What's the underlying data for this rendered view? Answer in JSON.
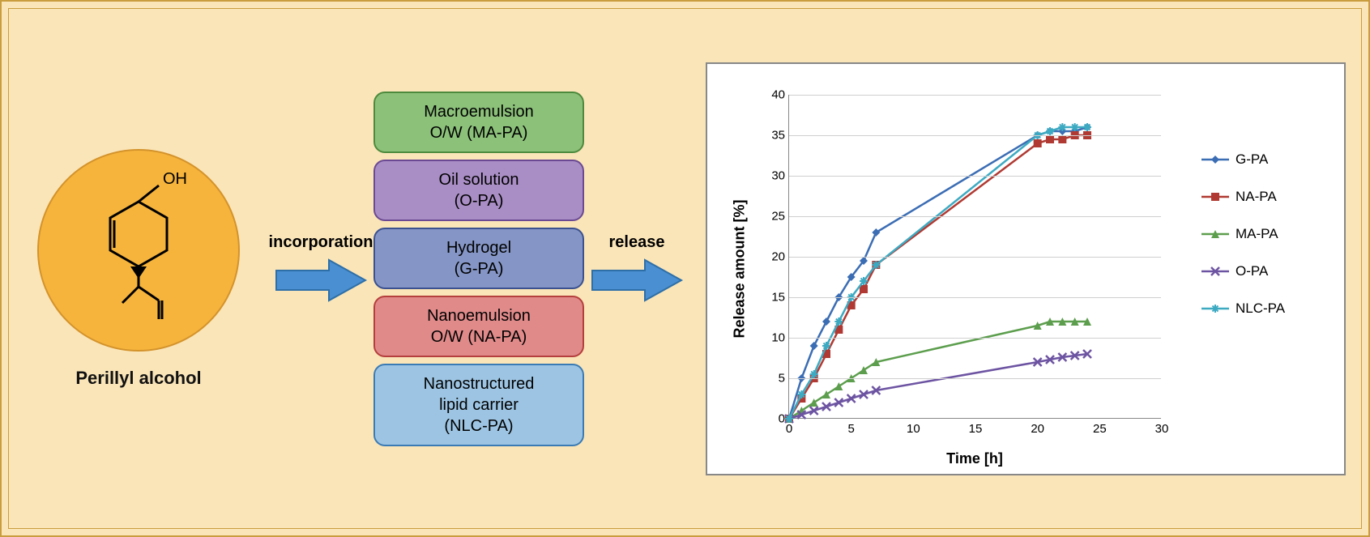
{
  "background_color": "#fae5b8",
  "molecule": {
    "label": "Perillyl alcohol",
    "circle_fill": "#f6b43c",
    "circle_stroke": "#d4932b"
  },
  "arrows": {
    "incorporation_label": "incorporation",
    "release_label": "release",
    "fill": "#4a8fd1",
    "stroke": "#2e6fa8"
  },
  "boxes": [
    {
      "line1": "Macroemulsion",
      "line2": "O/W (MA-PA)",
      "fill": "#8cc17a",
      "stroke": "#4d8a3d"
    },
    {
      "line1": "Oil solution",
      "line2": "(O-PA)",
      "fill": "#a98ec5",
      "stroke": "#6b4a93"
    },
    {
      "line1": "Hydrogel",
      "line2": "(G-PA)",
      "fill": "#8596c6",
      "stroke": "#3b5190"
    },
    {
      "line1": "Nanoemulsion",
      "line2": "O/W (NA-PA)",
      "fill": "#e08a8a",
      "stroke": "#b53f3d"
    },
    {
      "line1": "Nanostructured",
      "line2": "lipid carrier",
      "line3": "(NLC-PA)",
      "fill": "#9dc5e3",
      "stroke": "#3b7bb5"
    }
  ],
  "chart": {
    "type": "line",
    "xlabel": "Time [h]",
    "ylabel": "Release amount [%]",
    "xlim": [
      0,
      30
    ],
    "ylim": [
      0,
      40
    ],
    "xticks": [
      0,
      5,
      10,
      15,
      20,
      25,
      30
    ],
    "yticks": [
      0,
      5,
      10,
      15,
      20,
      25,
      30,
      35,
      40
    ],
    "grid_color": "#cfcfcf",
    "axis_color": "#888888",
    "label_fontsize": 18,
    "tick_fontsize": 15,
    "background_color": "#ffffff",
    "series": [
      {
        "name": "G-PA",
        "color": "#3b6db4",
        "marker": "diamond",
        "x": [
          0,
          1,
          2,
          3,
          4,
          5,
          6,
          7,
          20,
          21,
          22,
          23,
          24
        ],
        "y": [
          0,
          5,
          9,
          12,
          15,
          17.5,
          19.5,
          23,
          35,
          35.5,
          35.5,
          35.5,
          36
        ]
      },
      {
        "name": "NA-PA",
        "color": "#b03a33",
        "marker": "square",
        "x": [
          0,
          1,
          2,
          3,
          4,
          5,
          6,
          7,
          20,
          21,
          22,
          23,
          24
        ],
        "y": [
          0,
          2.5,
          5,
          8,
          11,
          14,
          16,
          19,
          34,
          34.5,
          34.5,
          35,
          35
        ]
      },
      {
        "name": "MA-PA",
        "color": "#5c9e4d",
        "marker": "triangle",
        "x": [
          0,
          1,
          2,
          3,
          4,
          5,
          6,
          7,
          20,
          21,
          22,
          23,
          24
        ],
        "y": [
          0,
          1,
          2,
          3,
          4,
          5,
          6,
          7,
          11.5,
          12,
          12,
          12,
          12
        ]
      },
      {
        "name": "O-PA",
        "color": "#6d54a2",
        "marker": "x",
        "x": [
          0,
          1,
          2,
          3,
          4,
          5,
          6,
          7,
          20,
          21,
          22,
          23,
          24
        ],
        "y": [
          0,
          0.5,
          1,
          1.5,
          2,
          2.5,
          3,
          3.5,
          7,
          7.3,
          7.6,
          7.8,
          8
        ]
      },
      {
        "name": "NLC-PA",
        "color": "#3daac2",
        "marker": "star",
        "x": [
          0,
          1,
          2,
          3,
          4,
          5,
          6,
          7,
          20,
          21,
          22,
          23,
          24
        ],
        "y": [
          0,
          3,
          5.5,
          9,
          12,
          15,
          17,
          19,
          35,
          35.5,
          36,
          36,
          36
        ]
      }
    ]
  }
}
